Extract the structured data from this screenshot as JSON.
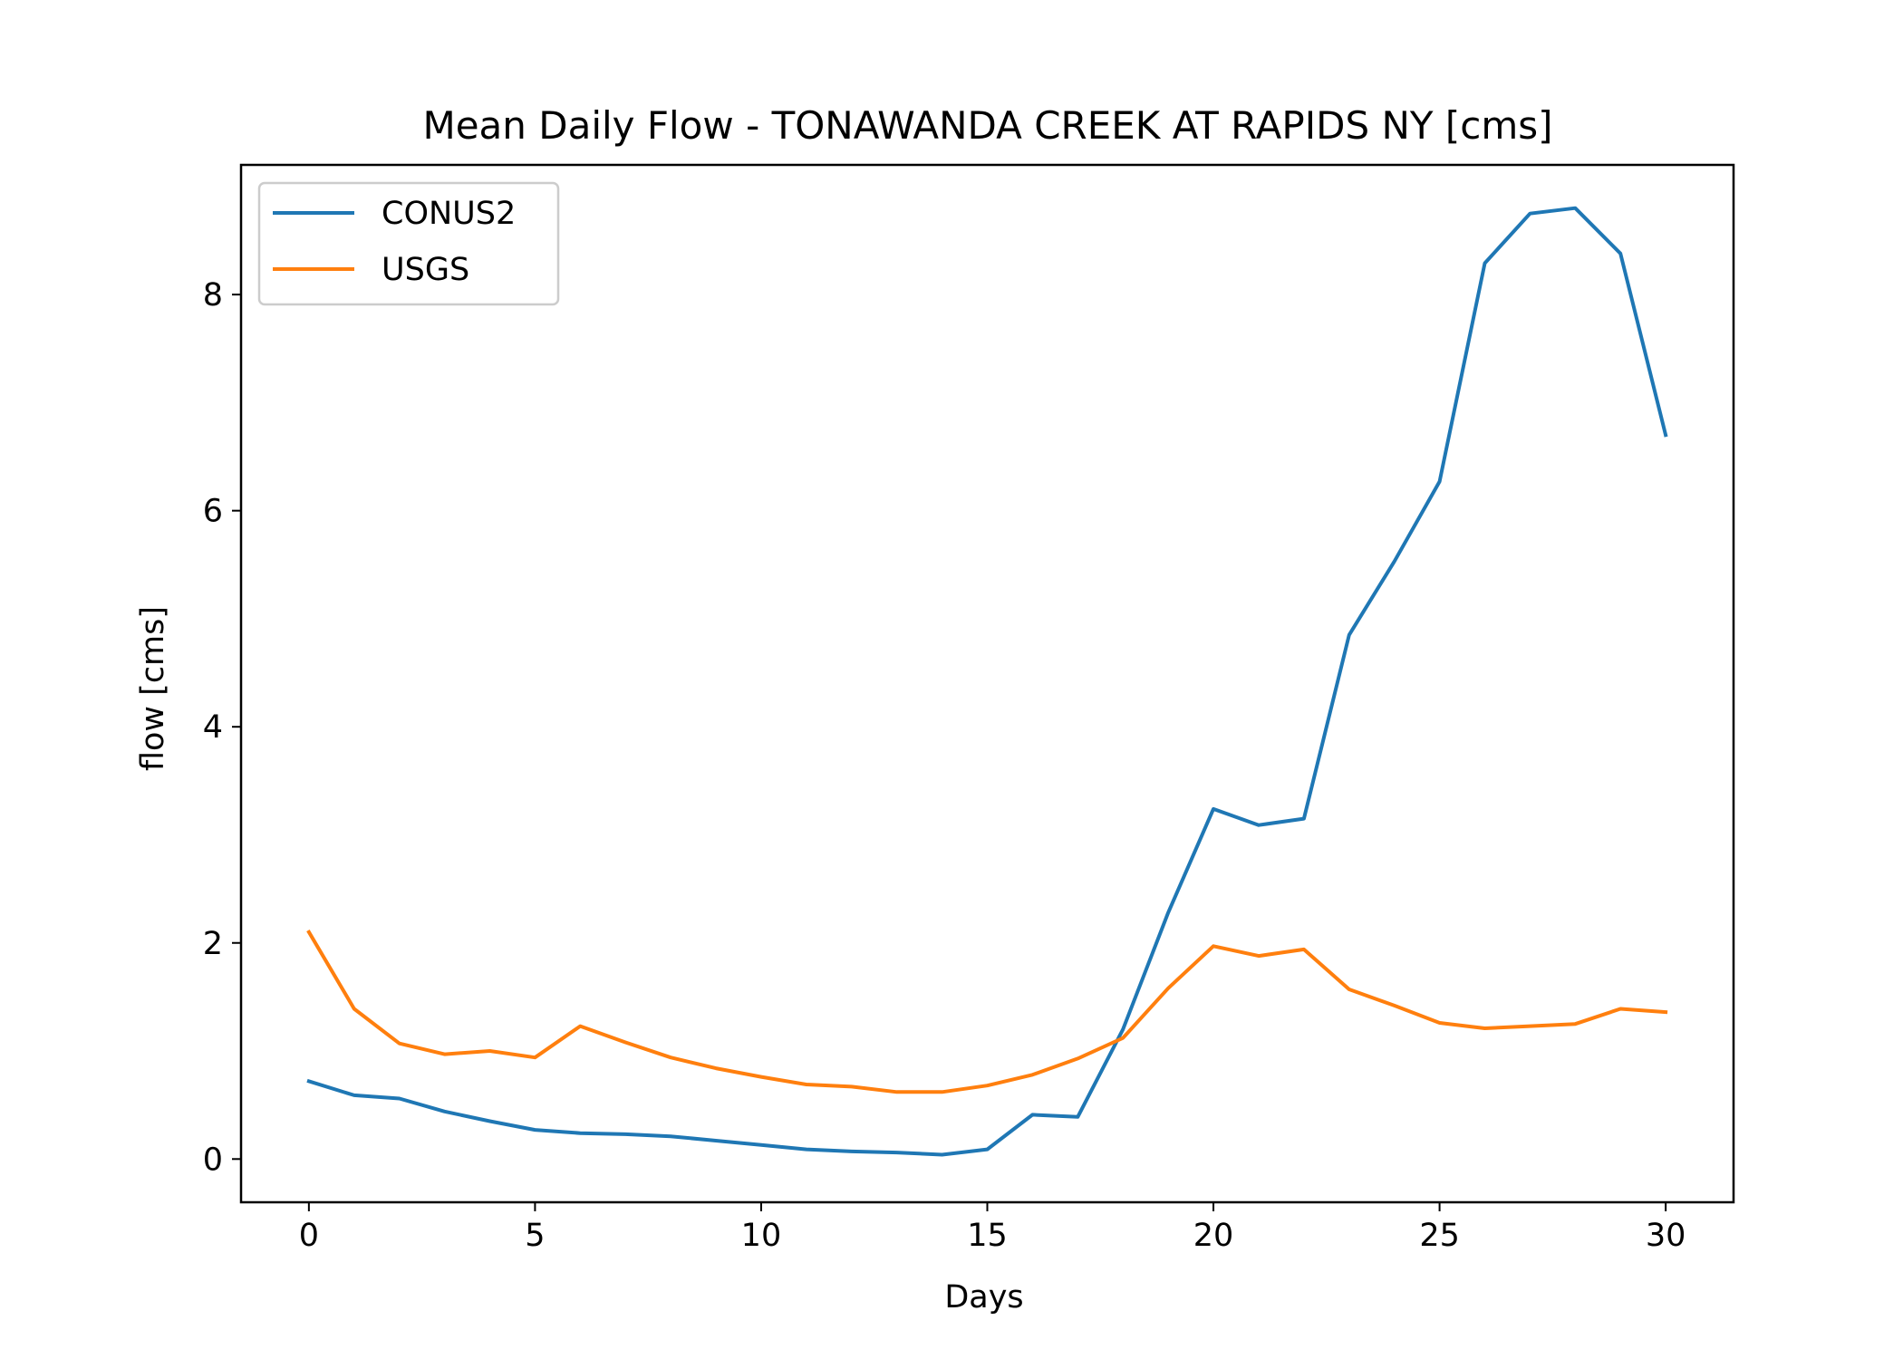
{
  "chart_data": {
    "type": "line",
    "title": "Mean Daily Flow - TONAWANDA CREEK AT RAPIDS NY [cms]",
    "xlabel": "Days",
    "ylabel": "flow [cms]",
    "xlim": [
      -1.5,
      31.5
    ],
    "ylim": [
      -0.4,
      9.2
    ],
    "xticks": [
      0,
      5,
      10,
      15,
      20,
      25,
      30
    ],
    "yticks": [
      0,
      2,
      4,
      6,
      8
    ],
    "grid": false,
    "legend_position": "upper-left",
    "x": [
      0,
      1,
      2,
      3,
      4,
      5,
      6,
      7,
      8,
      9,
      10,
      11,
      12,
      13,
      14,
      15,
      16,
      17,
      18,
      19,
      20,
      21,
      22,
      23,
      24,
      25,
      26,
      27,
      28,
      29,
      30
    ],
    "series": [
      {
        "name": "CONUS2",
        "color": "#1f77b4",
        "values": [
          0.72,
          0.59,
          0.56,
          0.44,
          0.35,
          0.27,
          0.24,
          0.23,
          0.21,
          0.17,
          0.13,
          0.09,
          0.07,
          0.06,
          0.04,
          0.09,
          0.41,
          0.39,
          1.2,
          2.28,
          3.24,
          3.09,
          3.15,
          4.85,
          5.53,
          6.27,
          8.29,
          8.75,
          8.8,
          8.38,
          6.7
        ]
      },
      {
        "name": "USGS",
        "color": "#ff7f0e",
        "values": [
          2.1,
          1.39,
          1.07,
          0.97,
          1.0,
          0.94,
          1.23,
          1.08,
          0.94,
          0.84,
          0.76,
          0.69,
          0.67,
          0.62,
          0.62,
          0.68,
          0.78,
          0.93,
          1.12,
          1.58,
          1.97,
          1.88,
          1.94,
          1.57,
          1.42,
          1.26,
          1.21,
          1.23,
          1.25,
          1.39,
          1.36
        ]
      }
    ]
  }
}
